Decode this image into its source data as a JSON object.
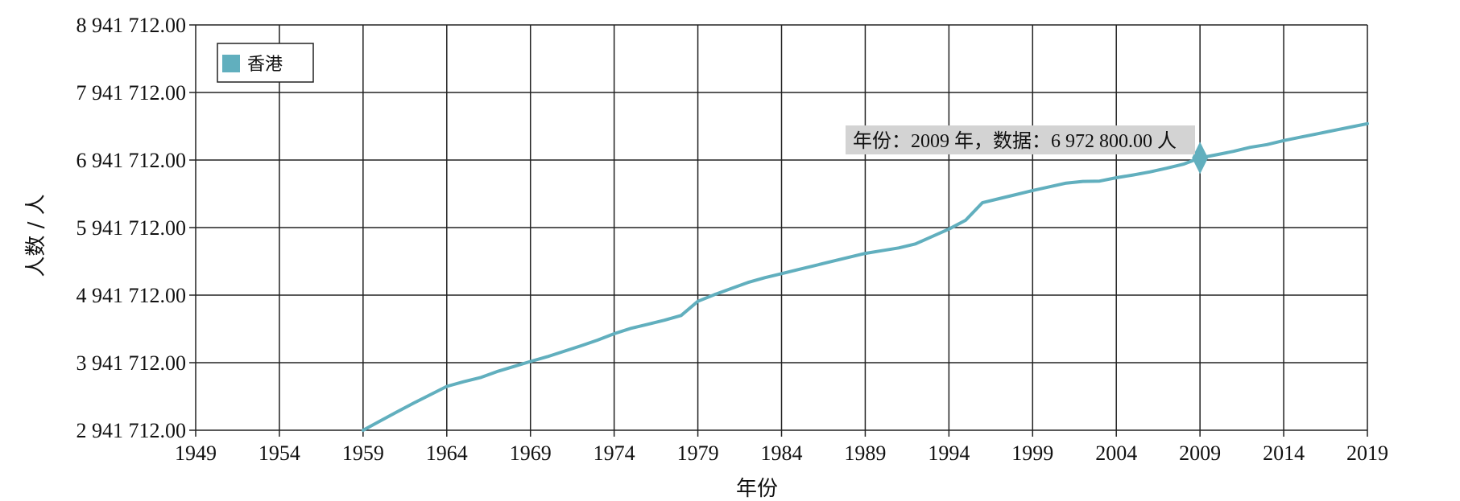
{
  "chart_data": {
    "type": "line",
    "title": "",
    "xlabel": "年份",
    "ylabel": "人数 / 人",
    "xlim": [
      1949,
      2019
    ],
    "ylim": [
      2941712,
      8941712
    ],
    "grid": true,
    "legend_position": "top-left",
    "x_ticks": [
      "1949",
      "1954",
      "1959",
      "1964",
      "1969",
      "1974",
      "1979",
      "1984",
      "1989",
      "1994",
      "1999",
      "2004",
      "2009",
      "2014",
      "2019"
    ],
    "x_tick_values": [
      1949,
      1954,
      1959,
      1964,
      1969,
      1974,
      1979,
      1984,
      1989,
      1994,
      1999,
      2004,
      2009,
      2014,
      2019
    ],
    "y_ticks": [
      "2 941 712.00",
      "3 941 712.00",
      "4 941 712.00",
      "5 941 712.00",
      "6 941 712.00",
      "7 941 712.00",
      "8 941 712.00"
    ],
    "y_tick_values": [
      2941712,
      3941712,
      4941712,
      5941712,
      6941712,
      7941712,
      8941712
    ],
    "series": [
      {
        "name": "香港",
        "color": "#61afbe",
        "x": [
          1959,
          1960,
          1961,
          1962,
          1963,
          1964,
          1965,
          1966,
          1967,
          1968,
          1969,
          1970,
          1971,
          1972,
          1973,
          1974,
          1975,
          1976,
          1977,
          1978,
          1979,
          1980,
          1981,
          1982,
          1983,
          1984,
          1985,
          1986,
          1987,
          1988,
          1989,
          1990,
          1991,
          1992,
          1993,
          1994,
          1995,
          1996,
          1997,
          1998,
          1999,
          2000,
          2001,
          2002,
          2003,
          2004,
          2005,
          2006,
          2007,
          2008,
          2009,
          2010,
          2011,
          2012,
          2013,
          2014,
          2015,
          2016,
          2017,
          2018,
          2019
        ],
        "values": [
          2941712,
          3076000,
          3210000,
          3340000,
          3465000,
          3590000,
          3660000,
          3720000,
          3810000,
          3885000,
          3960000,
          4030000,
          4110000,
          4190000,
          4275000,
          4370000,
          4450000,
          4510000,
          4570000,
          4640000,
          4850000,
          4950000,
          5040000,
          5130000,
          5200000,
          5260000,
          5320000,
          5380000,
          5440000,
          5500000,
          5560000,
          5600000,
          5640000,
          5700000,
          5810000,
          5920000,
          6050000,
          6310000,
          6370000,
          6430000,
          6490000,
          6545000,
          6600000,
          6625000,
          6630000,
          6680000,
          6720000,
          6765000,
          6820000,
          6880000,
          6972800,
          7020000,
          7070000,
          7130000,
          7170000,
          7230000,
          7280000,
          7330000,
          7380000,
          7430000,
          7480000
        ]
      }
    ],
    "highlight": {
      "x": 2009,
      "y": 6972800,
      "label": "年份：2009 年，数据：6 972 800.00 人"
    }
  }
}
